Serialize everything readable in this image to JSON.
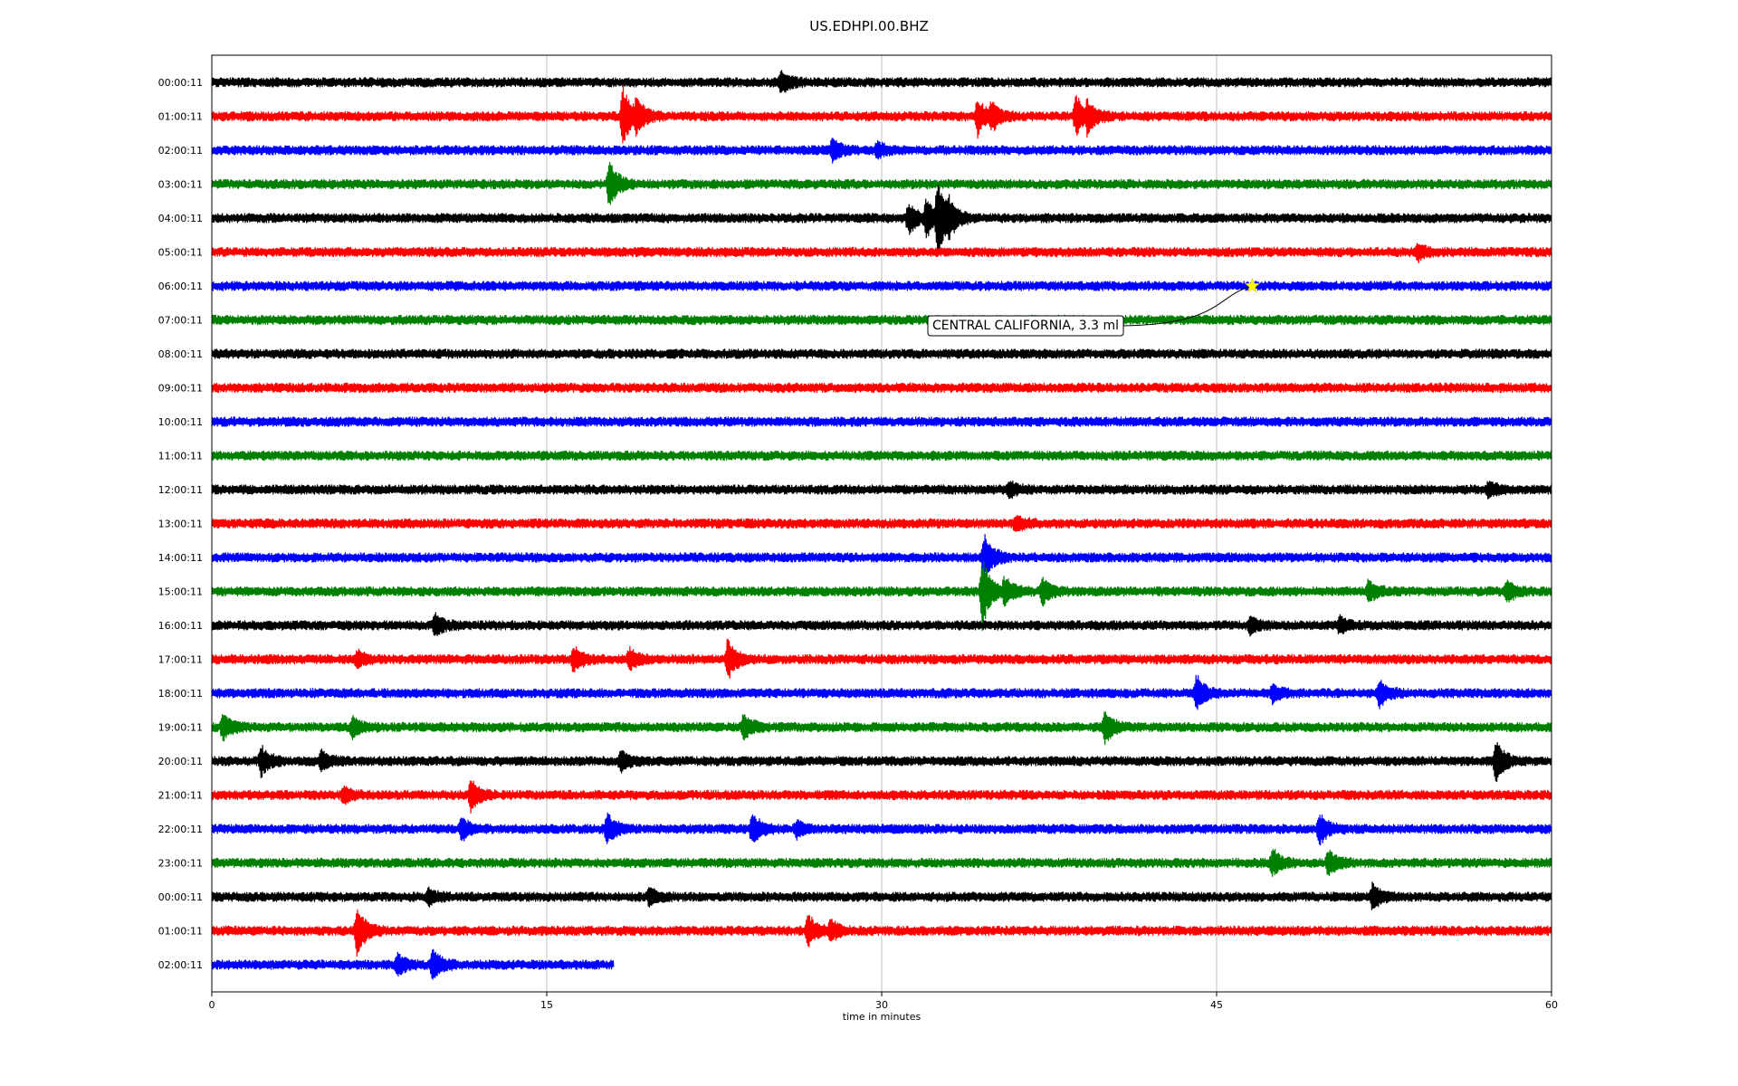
{
  "chart_data": {
    "type": "line",
    "title": "US.EDHPI.00.BHZ",
    "xlabel": "time in minutes",
    "xlim": [
      0,
      60
    ],
    "xticks": [
      0,
      15,
      30,
      45,
      60
    ],
    "grid": "vertical",
    "trace_colors": [
      "#000000",
      "#ff0000",
      "#0000ff",
      "#008000"
    ],
    "row_labels": [
      "00:00:11",
      "01:00:11",
      "02:00:11",
      "03:00:11",
      "04:00:11",
      "05:00:11",
      "06:00:11",
      "07:00:11",
      "08:00:11",
      "09:00:11",
      "10:00:11",
      "11:00:11",
      "12:00:11",
      "13:00:11",
      "14:00:11",
      "15:00:11",
      "16:00:11",
      "17:00:11",
      "18:00:11",
      "19:00:11",
      "20:00:11",
      "21:00:11",
      "22:00:11",
      "23:00:11",
      "00:00:11",
      "01:00:11",
      "02:00:11"
    ],
    "last_row_end_minute": 18,
    "annotation": {
      "text": "CENTRAL CALIFORNIA, 3.3 ml",
      "row": 6,
      "minute": 46.6,
      "marker_color": "#ffff00"
    },
    "events": [
      {
        "row": 0,
        "minute": 25.5,
        "amp": 0.4
      },
      {
        "row": 1,
        "minute": 18.4,
        "amp": 1.2
      },
      {
        "row": 1,
        "minute": 19.0,
        "amp": 0.8
      },
      {
        "row": 1,
        "minute": 34.3,
        "amp": 0.7
      },
      {
        "row": 1,
        "minute": 34.9,
        "amp": 0.6
      },
      {
        "row": 1,
        "minute": 38.7,
        "amp": 0.8
      },
      {
        "row": 1,
        "minute": 39.2,
        "amp": 0.7
      },
      {
        "row": 2,
        "minute": 27.8,
        "amp": 0.4
      },
      {
        "row": 2,
        "minute": 29.8,
        "amp": 0.3
      },
      {
        "row": 3,
        "minute": 17.8,
        "amp": 0.9
      },
      {
        "row": 4,
        "minute": 31.2,
        "amp": 0.6
      },
      {
        "row": 4,
        "minute": 32.0,
        "amp": 0.8
      },
      {
        "row": 4,
        "minute": 32.5,
        "amp": 1.7
      },
      {
        "row": 4,
        "minute": 33.0,
        "amp": 0.9
      },
      {
        "row": 5,
        "minute": 54.0,
        "amp": 0.3
      },
      {
        "row": 12,
        "minute": 35.7,
        "amp": 0.3
      },
      {
        "row": 12,
        "minute": 57.2,
        "amp": 0.3
      },
      {
        "row": 13,
        "minute": 36.0,
        "amp": 0.3
      },
      {
        "row": 14,
        "minute": 34.6,
        "amp": 0.9
      },
      {
        "row": 15,
        "minute": 34.5,
        "amp": 1.4
      },
      {
        "row": 15,
        "minute": 35.5,
        "amp": 0.6
      },
      {
        "row": 15,
        "minute": 37.2,
        "amp": 0.5
      },
      {
        "row": 15,
        "minute": 51.8,
        "amp": 0.4
      },
      {
        "row": 15,
        "minute": 58.0,
        "amp": 0.4
      },
      {
        "row": 16,
        "minute": 10.0,
        "amp": 0.4
      },
      {
        "row": 16,
        "minute": 46.5,
        "amp": 0.3
      },
      {
        "row": 16,
        "minute": 50.5,
        "amp": 0.3
      },
      {
        "row": 17,
        "minute": 6.5,
        "amp": 0.3
      },
      {
        "row": 17,
        "minute": 16.2,
        "amp": 0.5
      },
      {
        "row": 17,
        "minute": 18.7,
        "amp": 0.4
      },
      {
        "row": 17,
        "minute": 23.1,
        "amp": 0.8
      },
      {
        "row": 18,
        "minute": 44.1,
        "amp": 0.7
      },
      {
        "row": 18,
        "minute": 47.5,
        "amp": 0.3
      },
      {
        "row": 18,
        "minute": 52.3,
        "amp": 0.5
      },
      {
        "row": 19,
        "minute": 0.5,
        "amp": 0.5
      },
      {
        "row": 19,
        "minute": 6.3,
        "amp": 0.4
      },
      {
        "row": 19,
        "minute": 23.8,
        "amp": 0.5
      },
      {
        "row": 19,
        "minute": 40.0,
        "amp": 0.6
      },
      {
        "row": 20,
        "minute": 2.2,
        "amp": 0.6
      },
      {
        "row": 20,
        "minute": 4.9,
        "amp": 0.4
      },
      {
        "row": 20,
        "minute": 18.3,
        "amp": 0.4
      },
      {
        "row": 20,
        "minute": 57.5,
        "amp": 0.8
      },
      {
        "row": 21,
        "minute": 5.9,
        "amp": 0.3
      },
      {
        "row": 21,
        "minute": 11.6,
        "amp": 0.6
      },
      {
        "row": 22,
        "minute": 11.2,
        "amp": 0.4
      },
      {
        "row": 22,
        "minute": 17.7,
        "amp": 0.6
      },
      {
        "row": 22,
        "minute": 24.2,
        "amp": 0.6
      },
      {
        "row": 22,
        "minute": 26.2,
        "amp": 0.3
      },
      {
        "row": 22,
        "minute": 49.6,
        "amp": 0.6
      },
      {
        "row": 23,
        "minute": 47.5,
        "amp": 0.5
      },
      {
        "row": 23,
        "minute": 50.0,
        "amp": 0.5
      },
      {
        "row": 24,
        "minute": 9.7,
        "amp": 0.3
      },
      {
        "row": 24,
        "minute": 19.6,
        "amp": 0.3
      },
      {
        "row": 24,
        "minute": 52.0,
        "amp": 0.5
      },
      {
        "row": 25,
        "minute": 6.5,
        "amp": 1.0
      },
      {
        "row": 25,
        "minute": 26.7,
        "amp": 0.6
      },
      {
        "row": 25,
        "minute": 27.7,
        "amp": 0.4
      },
      {
        "row": 26,
        "minute": 8.3,
        "amp": 0.4
      },
      {
        "row": 26,
        "minute": 9.9,
        "amp": 0.6
      }
    ]
  }
}
